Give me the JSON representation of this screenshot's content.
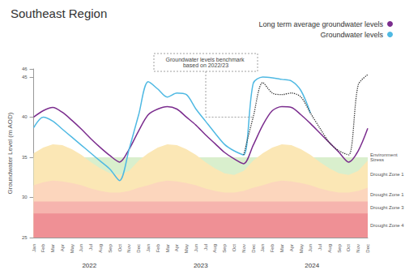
{
  "chart_data": {
    "type": "line",
    "title": "Southeast Region",
    "y_label": "Groundwater Level (m AOD)",
    "categories": [
      "Jan",
      "Feb",
      "Mar",
      "Apr",
      "May",
      "Jun",
      "Jul",
      "Aug",
      "Sep",
      "Oct",
      "Nov",
      "Dec",
      "Jan",
      "Feb",
      "Mar",
      "Apr",
      "May",
      "Jun",
      "Jul",
      "Aug",
      "Sep",
      "Oct",
      "Nov",
      "Dec",
      "Jan",
      "Feb",
      "Mar",
      "Apr",
      "May",
      "Jun",
      "Jul",
      "Aug",
      "Sep",
      "Oct",
      "Nov",
      "Dec"
    ],
    "years": [
      "2022",
      "2023",
      "2024"
    ],
    "series": [
      {
        "name": "Long term average groundwater levels",
        "color": "#7b2d8e",
        "marker": "none",
        "line_style": "solid",
        "values": [
          40.0,
          40.8,
          41.2,
          40.6,
          39.6,
          38.5,
          37.3,
          36.2,
          35.2,
          34.4,
          36.0,
          38.3,
          40.3,
          41.0,
          41.3,
          41.0,
          40.0,
          39.0,
          37.8,
          36.7,
          35.6,
          34.8,
          34.2,
          36.5,
          39.0,
          40.8,
          41.3,
          41.2,
          40.3,
          39.2,
          38.0,
          36.8,
          35.6,
          34.4,
          35.8,
          38.6
        ]
      },
      {
        "name": "Groundwater levels",
        "color": "#4fb9e3",
        "marker": "none",
        "line_style": "solid",
        "values": [
          38.7,
          40.0,
          39.5,
          38.5,
          37.5,
          36.5,
          35.5,
          34.5,
          33.5,
          32.1,
          36.0,
          40.3,
          44.4,
          43.5,
          42.5,
          43.0,
          42.8,
          41.0,
          39.5,
          38.0,
          36.6,
          35.8,
          35.3,
          44.2,
          45.0,
          44.9,
          44.7,
          44.5,
          43.3,
          40.5,
          null,
          null,
          null,
          null,
          null,
          null
        ]
      }
    ],
    "benchmark": {
      "color": "#333333",
      "marker": "none",
      "line_style": "dotted",
      "values": [
        null,
        null,
        null,
        null,
        null,
        null,
        null,
        null,
        null,
        null,
        null,
        null,
        null,
        null,
        null,
        null,
        null,
        null,
        null,
        null,
        null,
        null,
        35.3,
        40.0,
        44.3,
        43.0,
        42.8,
        43.0,
        42.5,
        40.5,
        38.6,
        36.8,
        35.8,
        35.3,
        44.0,
        45.3
      ]
    },
    "annotation": "Groundwater levels benchmark based on 2022/23",
    "zones": [
      {
        "name": "Environment Stress",
        "color": "#d9efcd",
        "values": [
          35,
          35,
          35,
          35,
          35,
          35,
          35,
          35,
          35,
          35,
          35,
          35,
          35,
          35,
          35,
          35,
          35,
          35,
          35,
          35,
          35,
          35,
          35,
          35,
          35,
          35,
          35,
          35,
          35,
          35,
          35,
          35,
          35,
          35,
          35,
          35
        ]
      },
      {
        "name": "Drought Zone 1",
        "color": "#fbe7b5",
        "values": [
          35.5,
          36.2,
          36.6,
          36.5,
          36.0,
          35.3,
          34.4,
          33.6,
          33.0,
          32.8,
          33.3,
          34.6,
          35.5,
          36.2,
          36.6,
          36.5,
          36.0,
          35.3,
          34.4,
          33.6,
          33.0,
          32.8,
          33.3,
          34.6,
          35.5,
          36.2,
          36.6,
          36.5,
          36.0,
          35.3,
          34.4,
          33.6,
          33.0,
          32.8,
          33.3,
          34.6
        ]
      },
      {
        "name": "Drought Zone 1",
        "color": "#fcd6bd",
        "values": [
          31.5,
          31.9,
          32.1,
          32.0,
          31.8,
          31.5,
          31.1,
          30.8,
          30.6,
          30.6,
          30.8,
          31.2,
          31.5,
          31.9,
          32.1,
          32.0,
          31.8,
          31.5,
          31.1,
          30.8,
          30.6,
          30.6,
          30.8,
          31.2,
          31.5,
          31.9,
          32.1,
          32.0,
          31.8,
          31.5,
          31.1,
          30.8,
          30.6,
          30.6,
          30.8,
          31.2
        ]
      },
      {
        "name": "Drought Zone 3",
        "color": "#f6b4ae",
        "values": [
          29.5,
          29.5,
          29.5,
          29.5,
          29.5,
          29.5,
          29.5,
          29.5,
          29.5,
          29.5,
          29.5,
          29.5,
          29.5,
          29.5,
          29.5,
          29.5,
          29.5,
          29.5,
          29.5,
          29.5,
          29.5,
          29.5,
          29.5,
          29.5,
          29.5,
          29.5,
          29.5,
          29.5,
          29.5,
          29.5,
          29.5,
          29.5,
          29.5,
          29.5,
          29.5,
          29.5
        ]
      },
      {
        "name": "Drought Zone 4",
        "color": "#ef9095",
        "values": [
          28,
          28,
          28,
          28,
          28,
          28,
          28,
          28,
          28,
          28,
          28,
          28,
          28,
          28,
          28,
          28,
          28,
          28,
          28,
          28,
          28,
          28,
          28,
          28,
          28,
          28,
          28,
          28,
          28,
          28,
          28,
          28,
          28,
          28,
          28,
          28
        ]
      }
    ],
    "ylim": [
      25,
      46
    ],
    "yticks": [
      25,
      30,
      35,
      40,
      45
    ],
    "grid": false,
    "legend": "top-right"
  }
}
